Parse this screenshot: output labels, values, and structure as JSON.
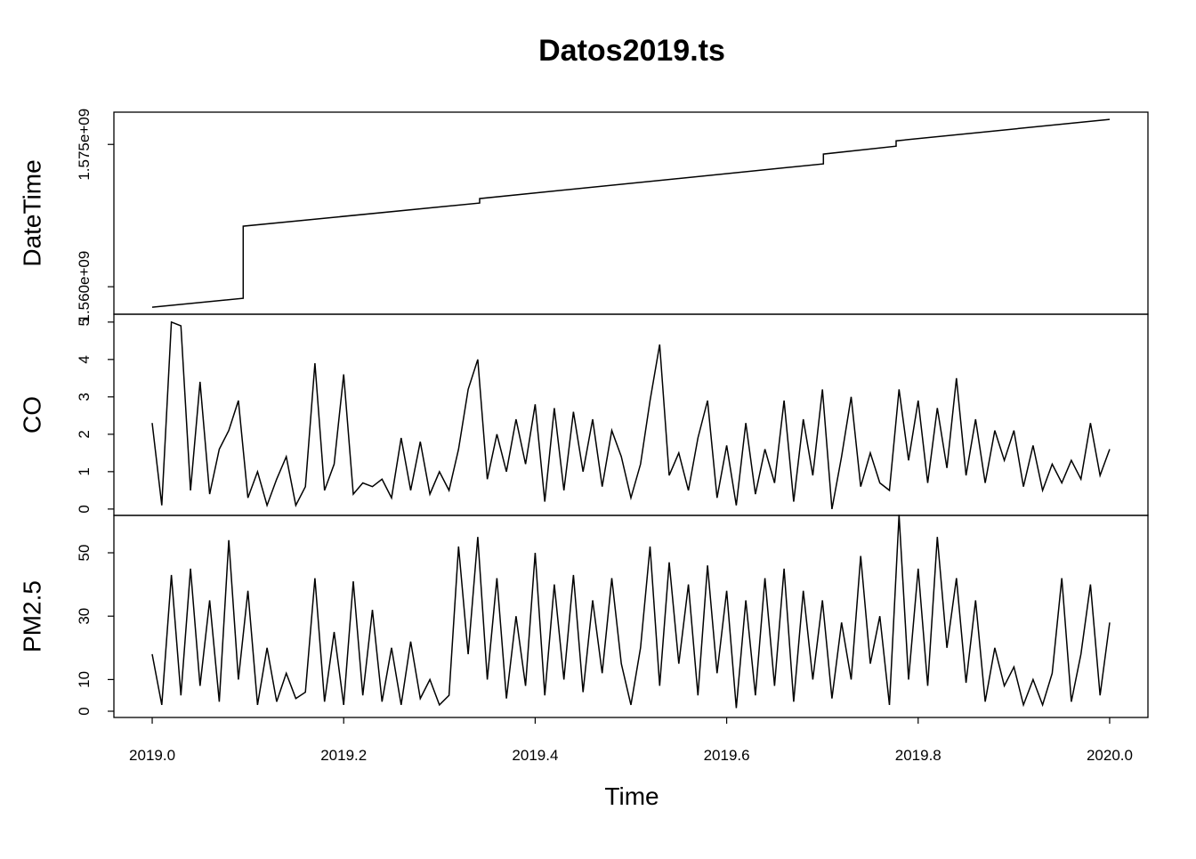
{
  "chart_data": [
    {
      "type": "line",
      "title": "Datos2019.ts",
      "ylabel": "DateTime",
      "color": "#000000",
      "x": [
        2019.0,
        2019.095,
        2019.095,
        2019.342,
        2019.342,
        2019.701,
        2019.701,
        2019.777,
        2019.777,
        2020.0
      ],
      "values": [
        1557840000,
        1558780000,
        1566380000,
        1568820000,
        1569290000,
        1572950000,
        1573980000,
        1574820000,
        1575380000,
        1577640000
      ],
      "xlim": [
        2018.96,
        2020.04
      ],
      "ylim": [
        1557100000,
        1578400000
      ],
      "yticks": [
        {
          "value": 1560000000,
          "label": "1.560e+09"
        },
        {
          "value": 1575000000,
          "label": "1.575e+09"
        }
      ]
    },
    {
      "type": "line",
      "ylabel": "CO",
      "color": "#000000",
      "x": [
        2019.0,
        2019.01,
        2019.02,
        2019.03,
        2019.04,
        2019.05,
        2019.06,
        2019.07,
        2019.08,
        2019.09,
        2019.1,
        2019.11,
        2019.12,
        2019.13,
        2019.14,
        2019.15,
        2019.16,
        2019.17,
        2019.18,
        2019.19,
        2019.2,
        2019.21,
        2019.22,
        2019.23,
        2019.24,
        2019.25,
        2019.26,
        2019.27,
        2019.28,
        2019.29,
        2019.3,
        2019.31,
        2019.32,
        2019.33,
        2019.34,
        2019.35,
        2019.36,
        2019.37,
        2019.38,
        2019.39,
        2019.4,
        2019.41,
        2019.42,
        2019.43,
        2019.44,
        2019.45,
        2019.46,
        2019.47,
        2019.48,
        2019.49,
        2019.5,
        2019.51,
        2019.52,
        2019.53,
        2019.54,
        2019.55,
        2019.56,
        2019.57,
        2019.58,
        2019.59,
        2019.6,
        2019.61,
        2019.62,
        2019.63,
        2019.64,
        2019.65,
        2019.66,
        2019.67,
        2019.68,
        2019.69,
        2019.7,
        2019.71,
        2019.72,
        2019.73,
        2019.74,
        2019.75,
        2019.76,
        2019.77,
        2019.78,
        2019.79,
        2019.8,
        2019.81,
        2019.82,
        2019.83,
        2019.84,
        2019.85,
        2019.86,
        2019.87,
        2019.88,
        2019.89,
        2019.9,
        2019.91,
        2019.92,
        2019.93,
        2019.94,
        2019.95,
        2019.96,
        2019.97,
        2019.98,
        2019.99,
        2020.0
      ],
      "values": [
        2.3,
        0.1,
        5.0,
        4.9,
        0.5,
        3.4,
        0.4,
        1.6,
        2.1,
        2.9,
        0.3,
        1.0,
        0.1,
        0.8,
        1.4,
        0.1,
        0.6,
        3.9,
        0.5,
        1.2,
        3.6,
        0.4,
        0.7,
        0.6,
        0.8,
        0.3,
        1.9,
        0.5,
        1.8,
        0.4,
        1.0,
        0.5,
        1.6,
        3.2,
        4.0,
        0.8,
        2.0,
        1.0,
        2.4,
        1.2,
        2.8,
        0.2,
        2.7,
        0.5,
        2.6,
        1.0,
        2.4,
        0.6,
        2.1,
        1.4,
        0.3,
        1.2,
        2.9,
        4.4,
        0.9,
        1.5,
        0.5,
        1.9,
        2.9,
        0.3,
        1.7,
        0.1,
        2.3,
        0.4,
        1.6,
        0.7,
        2.9,
        0.2,
        2.4,
        0.9,
        3.2,
        0.0,
        1.4,
        3.0,
        0.6,
        1.5,
        0.7,
        0.5,
        3.2,
        1.3,
        2.9,
        0.7,
        2.7,
        1.1,
        3.5,
        0.9,
        2.4,
        0.7,
        2.1,
        1.3,
        2.1,
        0.6,
        1.7,
        0.5,
        1.2,
        0.7,
        1.3,
        0.8,
        2.3,
        0.9,
        1.6
      ],
      "xlim": [
        2018.96,
        2020.04
      ],
      "ylim": [
        -0.17,
        5.21
      ],
      "yticks": [
        0,
        1,
        2,
        3,
        4,
        5
      ]
    },
    {
      "type": "line",
      "ylabel": "PM2.5",
      "xlabel": "Time",
      "color": "#000000",
      "x": [
        2019.0,
        2019.01,
        2019.02,
        2019.03,
        2019.04,
        2019.05,
        2019.06,
        2019.07,
        2019.08,
        2019.09,
        2019.1,
        2019.11,
        2019.12,
        2019.13,
        2019.14,
        2019.15,
        2019.16,
        2019.17,
        2019.18,
        2019.19,
        2019.2,
        2019.21,
        2019.22,
        2019.23,
        2019.24,
        2019.25,
        2019.26,
        2019.27,
        2019.28,
        2019.29,
        2019.3,
        2019.31,
        2019.32,
        2019.33,
        2019.34,
        2019.35,
        2019.36,
        2019.37,
        2019.38,
        2019.39,
        2019.4,
        2019.41,
        2019.42,
        2019.43,
        2019.44,
        2019.45,
        2019.46,
        2019.47,
        2019.48,
        2019.49,
        2019.5,
        2019.51,
        2019.52,
        2019.53,
        2019.54,
        2019.55,
        2019.56,
        2019.57,
        2019.58,
        2019.59,
        2019.6,
        2019.61,
        2019.62,
        2019.63,
        2019.64,
        2019.65,
        2019.66,
        2019.67,
        2019.68,
        2019.69,
        2019.7,
        2019.71,
        2019.72,
        2019.73,
        2019.74,
        2019.75,
        2019.76,
        2019.77,
        2019.78,
        2019.79,
        2019.8,
        2019.81,
        2019.82,
        2019.83,
        2019.84,
        2019.85,
        2019.86,
        2019.87,
        2019.88,
        2019.89,
        2019.9,
        2019.91,
        2019.92,
        2019.93,
        2019.94,
        2019.95,
        2019.96,
        2019.97,
        2019.98,
        2019.99,
        2020.0
      ],
      "values": [
        18,
        2,
        43,
        5,
        45,
        8,
        35,
        3,
        54,
        10,
        38,
        2,
        20,
        3,
        12,
        4,
        6,
        42,
        3,
        25,
        2,
        41,
        5,
        32,
        3,
        20,
        2,
        22,
        4,
        10,
        2,
        5,
        52,
        18,
        55,
        10,
        42,
        4,
        30,
        8,
        50,
        5,
        40,
        10,
        43,
        6,
        35,
        12,
        42,
        15,
        2,
        20,
        52,
        8,
        47,
        15,
        40,
        5,
        46,
        12,
        38,
        1,
        35,
        5,
        42,
        8,
        45,
        3,
        38,
        10,
        35,
        4,
        28,
        10,
        49,
        15,
        30,
        2,
        62,
        10,
        45,
        8,
        55,
        20,
        42,
        9,
        35,
        3,
        20,
        8,
        14,
        2,
        10,
        2,
        12,
        42,
        3,
        18,
        40,
        5,
        28
      ],
      "xlim": [
        2018.96,
        2020.04
      ],
      "ylim": [
        -1.97,
        61.8
      ],
      "yticks": [
        0,
        10,
        30,
        50
      ],
      "xticks": [
        {
          "value": 2019.0,
          "label": "2019.0"
        },
        2019.2,
        2019.4,
        2019.6,
        2019.8,
        {
          "value": 2020.0,
          "label": "2020.0"
        }
      ]
    }
  ]
}
